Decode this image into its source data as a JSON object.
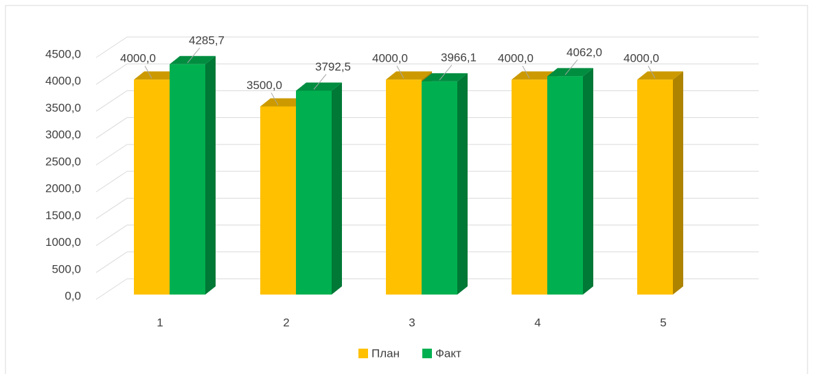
{
  "chart_data": {
    "type": "bar3d",
    "categories": [
      "1",
      "2",
      "3",
      "4",
      "5"
    ],
    "series": [
      {
        "name": "План",
        "color": "#ffc000",
        "values": [
          4000,
          3500,
          4000,
          4000,
          4000
        ],
        "value_labels": [
          "4000,0",
          "3500,0",
          "4000,0",
          "4000,0",
          "4000,0"
        ]
      },
      {
        "name": "Факт",
        "color": "#00b050",
        "values": [
          4285.7,
          3792.5,
          3966.1,
          4062.0,
          null
        ],
        "value_labels": [
          "4285,7",
          "3792,5",
          "3966,1",
          "4062,0",
          null
        ]
      }
    ],
    "ylim": [
      0,
      4500
    ],
    "yticks": [
      {
        "value": 0,
        "label": "0,0"
      },
      {
        "value": 500,
        "label": "500,0"
      },
      {
        "value": 1000,
        "label": "1000,0"
      },
      {
        "value": 1500,
        "label": "1500,0"
      },
      {
        "value": 2000,
        "label": "2000,0"
      },
      {
        "value": 2500,
        "label": "2500,0"
      },
      {
        "value": 3000,
        "label": "3000,0"
      },
      {
        "value": 3500,
        "label": "3500,0"
      },
      {
        "value": 4000,
        "label": "4000,0"
      },
      {
        "value": 4500,
        "label": "4500,0"
      }
    ],
    "grid": true,
    "legend": "bottom"
  }
}
